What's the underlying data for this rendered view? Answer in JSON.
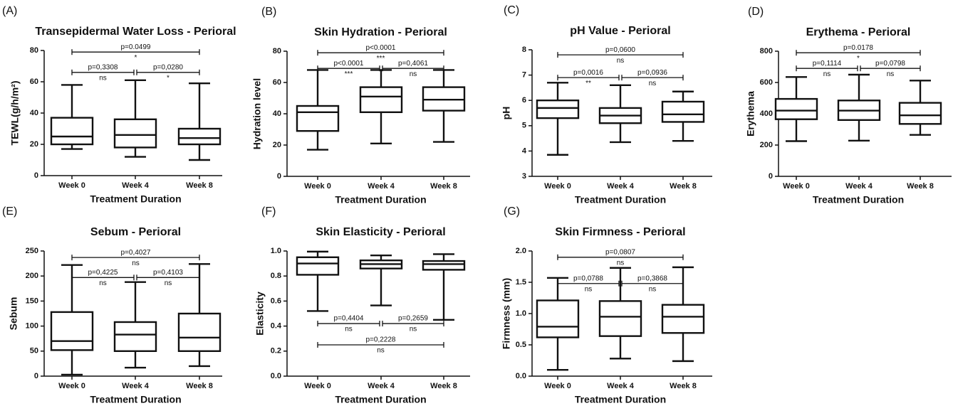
{
  "chart_data": [
    {
      "type": "box",
      "panel": "(A)",
      "title": "Transepidermal Water Loss - Perioral",
      "xlabel": "Treatment Duration",
      "ylabel": "TEWL(g/h/m²)",
      "categories": [
        "Week 0",
        "Week 4",
        "Week 8"
      ],
      "boxes": [
        {
          "min": 17,
          "q1": 20,
          "median": 25,
          "q3": 37,
          "max": 58
        },
        {
          "min": 12,
          "q1": 18,
          "median": 26,
          "q3": 36,
          "max": 61
        },
        {
          "min": 10,
          "q1": 20,
          "median": 24,
          "q3": 30,
          "max": 59
        }
      ],
      "ylim": [
        0,
        80
      ],
      "yticks": [
        0,
        20,
        40,
        60,
        80
      ],
      "annotations": [
        {
          "from": 0,
          "to": 2,
          "y": 79,
          "text": "p=0.0499",
          "sig": "*"
        },
        {
          "from": 0,
          "to": 1,
          "y": 66,
          "text": "p=0,3308",
          "sig": "ns"
        },
        {
          "from": 1,
          "to": 2,
          "y": 66,
          "text": "p=0,0280",
          "sig": "*"
        }
      ]
    },
    {
      "type": "box",
      "panel": "(B)",
      "title": "Skin Hydration - Perioral",
      "xlabel": "Treatment Duration",
      "ylabel": "Hydration level",
      "categories": [
        "Week 0",
        "Week 4",
        "Week 8"
      ],
      "boxes": [
        {
          "min": 17,
          "q1": 29,
          "median": 41,
          "q3": 45,
          "max": 68
        },
        {
          "min": 21,
          "q1": 41,
          "median": 51,
          "q3": 57,
          "max": 68
        },
        {
          "min": 22,
          "q1": 42,
          "median": 49,
          "q3": 57,
          "max": 68
        }
      ],
      "ylim": [
        0,
        80
      ],
      "yticks": [
        0,
        20,
        40,
        60,
        80
      ],
      "annotations": [
        {
          "from": 0,
          "to": 2,
          "y": 79,
          "text": "p<0.0001",
          "sig": "***"
        },
        {
          "from": 0,
          "to": 1,
          "y": 69,
          "text": "p<0.0001",
          "sig": "***"
        },
        {
          "from": 1,
          "to": 2,
          "y": 69,
          "text": "p=0,4061",
          "sig": "ns"
        }
      ]
    },
    {
      "type": "box",
      "panel": "(C)",
      "title": "pH Value - Perioral",
      "xlabel": "Treatment Duration",
      "ylabel": "pH",
      "categories": [
        "Week 0",
        "Week 4",
        "Week 8"
      ],
      "boxes": [
        {
          "min": 3.85,
          "q1": 5.3,
          "median": 5.7,
          "q3": 6.0,
          "max": 6.7
        },
        {
          "min": 4.35,
          "q1": 5.1,
          "median": 5.4,
          "q3": 5.7,
          "max": 6.6
        },
        {
          "min": 4.4,
          "q1": 5.15,
          "median": 5.45,
          "q3": 5.95,
          "max": 6.35
        }
      ],
      "ylim": [
        3,
        8
      ],
      "yticks": [
        3,
        4,
        5,
        6,
        7,
        8
      ],
      "annotations": [
        {
          "from": 0,
          "to": 2,
          "y": 7.8,
          "text": "p=0,0600",
          "sig": "ns"
        },
        {
          "from": 0,
          "to": 1,
          "y": 6.9,
          "text": "p=0,0016",
          "sig": "**"
        },
        {
          "from": 1,
          "to": 2,
          "y": 6.9,
          "text": "p=0,0936",
          "sig": "ns"
        }
      ]
    },
    {
      "type": "box",
      "panel": "(D)",
      "title": "Erythema - Perioral",
      "xlabel": "Treatment Duration",
      "ylabel": "Erythema",
      "categories": [
        "Week 0",
        "Week 4",
        "Week 8"
      ],
      "boxes": [
        {
          "min": 225,
          "q1": 365,
          "median": 420,
          "q3": 495,
          "max": 635
        },
        {
          "min": 228,
          "q1": 360,
          "median": 420,
          "q3": 485,
          "max": 650
        },
        {
          "min": 265,
          "q1": 335,
          "median": 390,
          "q3": 470,
          "max": 612
        }
      ],
      "ylim": [
        0,
        800
      ],
      "yticks": [
        0,
        200,
        400,
        600,
        800
      ],
      "annotations": [
        {
          "from": 0,
          "to": 2,
          "y": 790,
          "text": "p=0.0178",
          "sig": "*"
        },
        {
          "from": 0,
          "to": 1,
          "y": 690,
          "text": "p=0,1114",
          "sig": "ns"
        },
        {
          "from": 1,
          "to": 2,
          "y": 690,
          "text": "p=0,0798",
          "sig": "ns"
        }
      ]
    },
    {
      "type": "box",
      "panel": "(E)",
      "title": "Sebum - Perioral",
      "xlabel": "Treatment Duration",
      "ylabel": "Sebum",
      "categories": [
        "Week 0",
        "Week 4",
        "Week 8"
      ],
      "boxes": [
        {
          "min": 3,
          "q1": 52,
          "median": 70,
          "q3": 128,
          "max": 222
        },
        {
          "min": 17,
          "q1": 50,
          "median": 83,
          "q3": 108,
          "max": 188
        },
        {
          "min": 20,
          "q1": 50,
          "median": 77,
          "q3": 125,
          "max": 224
        }
      ],
      "ylim": [
        0,
        250
      ],
      "yticks": [
        0,
        50,
        100,
        150,
        200,
        250
      ],
      "annotations": [
        {
          "from": 0,
          "to": 2,
          "y": 237,
          "text": "p=0,4027",
          "sig": "ns"
        },
        {
          "from": 0,
          "to": 1,
          "y": 197,
          "text": "p=0,4225",
          "sig": "ns"
        },
        {
          "from": 1,
          "to": 2,
          "y": 197,
          "text": "p=0,4103",
          "sig": "ns"
        }
      ]
    },
    {
      "type": "box",
      "panel": "(F)",
      "title": "Skin Elasticity - Perioral",
      "xlabel": "Treatment Duration",
      "ylabel": "Elasticity",
      "categories": [
        "Week 0",
        "Week 4",
        "Week 8"
      ],
      "boxes": [
        {
          "min": 0.52,
          "q1": 0.81,
          "median": 0.9,
          "q3": 0.95,
          "max": 0.995
        },
        {
          "min": 0.565,
          "q1": 0.86,
          "median": 0.895,
          "q3": 0.925,
          "max": 0.965
        },
        {
          "min": 0.45,
          "q1": 0.85,
          "median": 0.895,
          "q3": 0.92,
          "max": 0.975
        }
      ],
      "ylim": [
        0,
        1
      ],
      "yticks": [
        {
          "value": 0,
          "label": "0.0"
        },
        0.2,
        0.4,
        0.6,
        0.8,
        {
          "value": 1,
          "label": "1.0"
        }
      ],
      "annotations": [
        {
          "from": 0,
          "to": 1,
          "y": 0.42,
          "text": "p=0,4404",
          "sig": "ns"
        },
        {
          "from": 1,
          "to": 2,
          "y": 0.42,
          "text": "p=0,2659",
          "sig": "ns"
        },
        {
          "from": 0,
          "to": 2,
          "y": 0.25,
          "text": "p=0,2228",
          "sig": "ns"
        }
      ]
    },
    {
      "type": "box",
      "panel": "(G)",
      "title": "Skin Firmness - Perioral",
      "xlabel": "Treatment Duration",
      "ylabel": "Firmness (mm)",
      "categories": [
        "Week 0",
        "Week 4",
        "Week 8"
      ],
      "boxes": [
        {
          "min": 0.1,
          "q1": 0.62,
          "median": 0.79,
          "q3": 1.21,
          "max": 1.57
        },
        {
          "min": 0.28,
          "q1": 0.64,
          "median": 0.95,
          "q3": 1.2,
          "max": 1.73
        },
        {
          "min": 0.24,
          "q1": 0.69,
          "median": 0.95,
          "q3": 1.14,
          "max": 1.74
        }
      ],
      "ylim": [
        0,
        2
      ],
      "yticks": [
        {
          "value": 0,
          "label": "0.0"
        },
        0.5,
        {
          "value": 1,
          "label": "1.0"
        },
        1.5,
        {
          "value": 2,
          "label": "2.0"
        }
      ],
      "annotations": [
        {
          "from": 0,
          "to": 2,
          "y": 1.9,
          "text": "p=0,0807",
          "sig": "ns"
        },
        {
          "from": 0,
          "to": 1,
          "y": 1.48,
          "text": "p=0,0788",
          "sig": "ns"
        },
        {
          "from": 1,
          "to": 2,
          "y": 1.48,
          "text": "p=0,3868",
          "sig": "ns"
        }
      ]
    }
  ]
}
